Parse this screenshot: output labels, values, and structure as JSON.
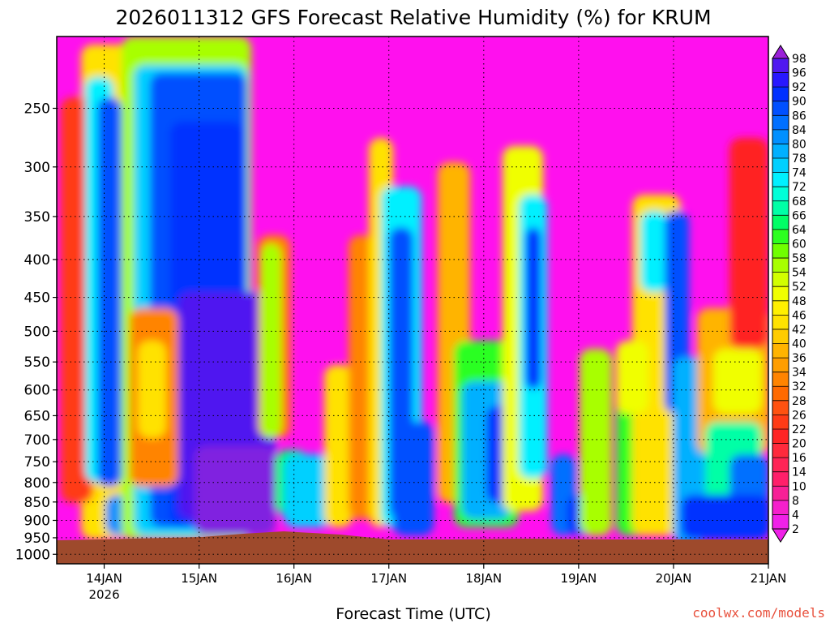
{
  "chart_data": {
    "type": "heatmap",
    "title": "2026011312 GFS Forecast Relative Humidity (%) for KRUM",
    "xlabel": "Forecast Time (UTC)",
    "ylabel": "",
    "x_ticks": [
      "14JAN",
      "15JAN",
      "16JAN",
      "17JAN",
      "18JAN",
      "19JAN",
      "20JAN",
      "21JAN"
    ],
    "x_tick_year": "2026",
    "x_range_days": [
      13.5,
      21.0
    ],
    "y_ticks": [
      250,
      300,
      350,
      400,
      450,
      500,
      550,
      600,
      650,
      700,
      750,
      800,
      850,
      900,
      950,
      1000
    ],
    "y_range_hpa": [
      200,
      1030
    ],
    "y_scale": "log-pressure",
    "colorbar": {
      "levels": [
        2,
        4,
        8,
        10,
        14,
        16,
        20,
        22,
        26,
        28,
        32,
        34,
        36,
        40,
        42,
        46,
        48,
        52,
        54,
        58,
        60,
        64,
        66,
        68,
        72,
        74,
        78,
        80,
        84,
        86,
        90,
        92,
        96,
        98
      ],
      "colors": [
        "#f020e8",
        "#f520cc",
        "#f72096",
        "#ff1f6a",
        "#ff2456",
        "#ff2a3c",
        "#ff2424",
        "#ff3b16",
        "#ff5210",
        "#ff6a00",
        "#ff8400",
        "#ff9e00",
        "#ffb400",
        "#ffcc00",
        "#ffe200",
        "#fff000",
        "#f0ff00",
        "#d2ff00",
        "#a8ff00",
        "#70ff00",
        "#2cff20",
        "#00ff66",
        "#00ffa6",
        "#00ffd8",
        "#00f0ff",
        "#00d0ff",
        "#00b0ff",
        "#0090ff",
        "#0070ff",
        "#0050ff",
        "#0030ff",
        "#2818ff",
        "#5018f0",
        "#8020e0"
      ],
      "under_color": "#f020e8",
      "over_color": "#9a20d8"
    },
    "ground_color": "#9e4a2c",
    "credit": "coolwx.com/models",
    "grid": true
  }
}
